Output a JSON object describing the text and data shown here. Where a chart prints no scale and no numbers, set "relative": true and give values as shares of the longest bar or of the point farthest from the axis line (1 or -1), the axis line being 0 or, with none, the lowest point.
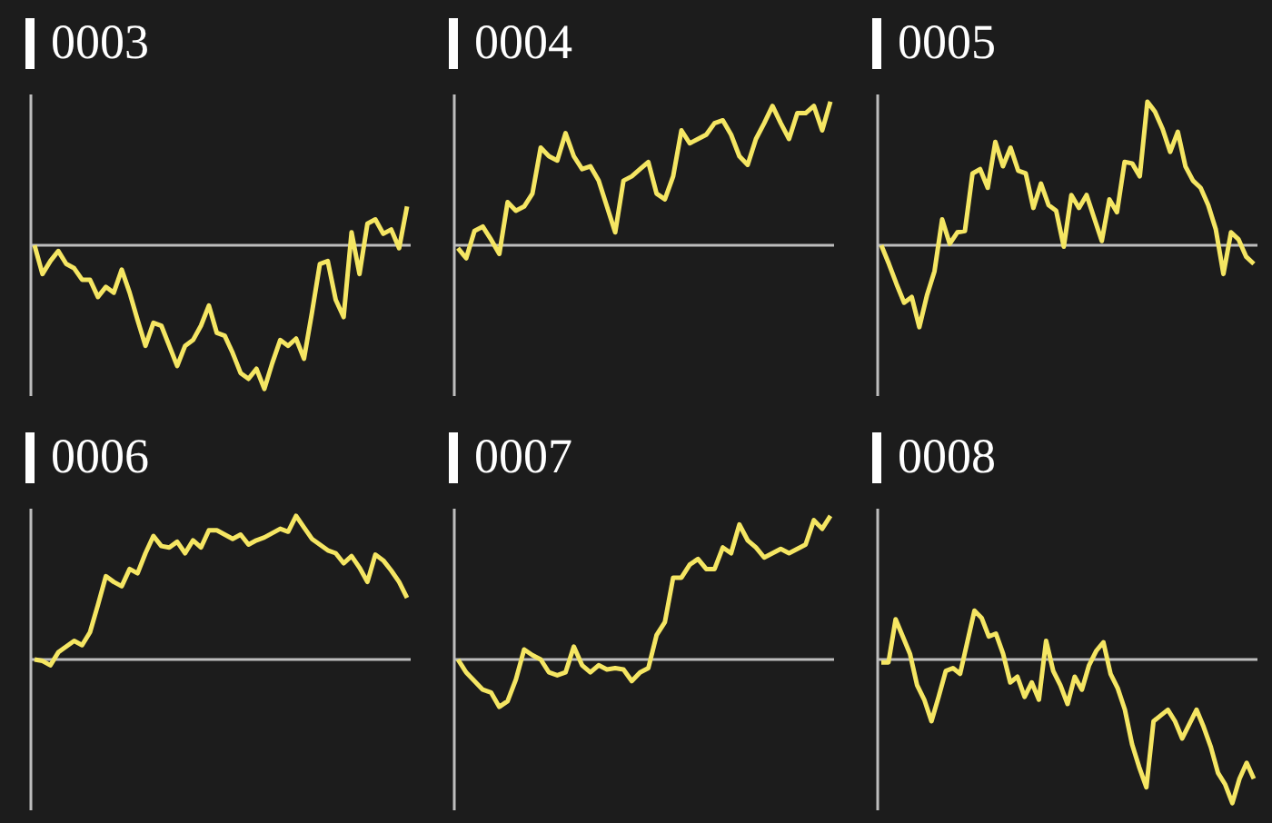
{
  "chart_data": [
    {
      "type": "line",
      "title": "0003",
      "relative": true,
      "categories": [
        null,
        null,
        null,
        null,
        null,
        null,
        null,
        null,
        null,
        null,
        null,
        null,
        null,
        null,
        null,
        null,
        null,
        null,
        null,
        null,
        null,
        null,
        null,
        null,
        null,
        null,
        null,
        null,
        null,
        null,
        null,
        null,
        null,
        null,
        null,
        null,
        null,
        null,
        null,
        null,
        null,
        null,
        null,
        null,
        null,
        null,
        null,
        null
      ],
      "series": [
        {
          "color": "#f5e663",
          "values": [
            0,
            -0.2,
            -0.11,
            -0.04,
            -0.13,
            -0.16,
            -0.24,
            -0.24,
            -0.36,
            -0.29,
            -0.33,
            -0.17,
            -0.33,
            -0.52,
            -0.7,
            -0.54,
            -0.56,
            -0.7,
            -0.84,
            -0.7,
            -0.66,
            -0.56,
            -0.42,
            -0.61,
            -0.63,
            -0.75,
            -0.89,
            -0.93,
            -0.86,
            -1,
            -0.82,
            -0.66,
            -0.7,
            -0.65,
            -0.79,
            -0.47,
            -0.13,
            -0.11,
            -0.38,
            -0.5,
            0.09,
            -0.2,
            0.15,
            0.18,
            0.08,
            0.11,
            -0.02,
            0.27
          ]
        }
      ]
    },
    {
      "type": "line",
      "title": "0004",
      "relative": true,
      "categories": [
        null,
        null,
        null,
        null,
        null,
        null,
        null,
        null,
        null,
        null,
        null,
        null,
        null,
        null,
        null,
        null,
        null,
        null,
        null,
        null,
        null,
        null,
        null,
        null,
        null,
        null,
        null,
        null,
        null,
        null,
        null,
        null,
        null,
        null,
        null,
        null,
        null,
        null,
        null,
        null,
        null,
        null,
        null,
        null,
        null,
        null
      ],
      "series": [
        {
          "color": "#f5e663",
          "values": [
            -0.02,
            -0.09,
            0.1,
            0.13,
            0.04,
            -0.06,
            0.3,
            0.24,
            0.27,
            0.36,
            0.68,
            0.62,
            0.59,
            0.78,
            0.62,
            0.53,
            0.55,
            0.45,
            0.27,
            0.09,
            0.45,
            0.48,
            0.53,
            0.58,
            0.36,
            0.32,
            0.48,
            0.8,
            0.71,
            0.74,
            0.77,
            0.85,
            0.87,
            0.77,
            0.62,
            0.56,
            0.74,
            0.85,
            0.97,
            0.85,
            0.74,
            0.92,
            0.92,
            0.97,
            0.8,
            1
          ]
        }
      ]
    },
    {
      "type": "line",
      "title": "0005",
      "relative": true,
      "categories": [
        null,
        null,
        null,
        null,
        null,
        null,
        null,
        null,
        null,
        null,
        null,
        null,
        null,
        null,
        null,
        null,
        null,
        null,
        null,
        null,
        null,
        null,
        null,
        null,
        null,
        null,
        null,
        null,
        null,
        null,
        null,
        null,
        null,
        null,
        null,
        null,
        null,
        null,
        null,
        null,
        null,
        null,
        null,
        null,
        null,
        null,
        null,
        null,
        null,
        null
      ],
      "series": [
        {
          "color": "#f5e663",
          "values": [
            0,
            -0.13,
            -0.27,
            -0.4,
            -0.36,
            -0.57,
            -0.35,
            -0.18,
            0.18,
            0.01,
            0.09,
            0.1,
            0.5,
            0.53,
            0.4,
            0.72,
            0.55,
            0.68,
            0.52,
            0.5,
            0.26,
            0.43,
            0.28,
            0.24,
            -0.01,
            0.35,
            0.26,
            0.35,
            0.19,
            0.03,
            0.32,
            0.23,
            0.58,
            0.57,
            0.48,
            1,
            0.93,
            0.81,
            0.65,
            0.79,
            0.55,
            0.45,
            0.4,
            0.28,
            0.11,
            -0.2,
            0.09,
            0.04,
            -0.08,
            -0.13
          ]
        }
      ]
    },
    {
      "type": "line",
      "title": "0006",
      "relative": true,
      "categories": [
        null,
        null,
        null,
        null,
        null,
        null,
        null,
        null,
        null,
        null,
        null,
        null,
        null,
        null,
        null,
        null,
        null,
        null,
        null,
        null,
        null,
        null,
        null,
        null,
        null,
        null,
        null,
        null,
        null,
        null,
        null,
        null,
        null,
        null,
        null,
        null,
        null,
        null,
        null,
        null,
        null,
        null,
        null,
        null,
        null,
        null,
        null,
        null
      ],
      "series": [
        {
          "color": "#f5e663",
          "values": [
            0,
            -0.01,
            -0.04,
            0.05,
            0.09,
            0.13,
            0.1,
            0.19,
            0.38,
            0.58,
            0.54,
            0.51,
            0.63,
            0.6,
            0.74,
            0.86,
            0.79,
            0.78,
            0.82,
            0.74,
            0.83,
            0.78,
            0.9,
            0.9,
            0.87,
            0.84,
            0.87,
            0.8,
            0.83,
            0.85,
            0.88,
            0.91,
            0.89,
            1,
            0.92,
            0.84,
            0.8,
            0.76,
            0.74,
            0.67,
            0.72,
            0.64,
            0.54,
            0.73,
            0.69,
            0.62,
            0.54,
            0.43
          ]
        }
      ]
    },
    {
      "type": "line",
      "title": "0007",
      "relative": true,
      "categories": [
        null,
        null,
        null,
        null,
        null,
        null,
        null,
        null,
        null,
        null,
        null,
        null,
        null,
        null,
        null,
        null,
        null,
        null,
        null,
        null,
        null,
        null,
        null,
        null,
        null,
        null,
        null,
        null,
        null,
        null,
        null,
        null,
        null,
        null,
        null,
        null,
        null,
        null,
        null,
        null,
        null,
        null,
        null,
        null,
        null,
        null
      ],
      "series": [
        {
          "color": "#f5e663",
          "values": [
            0,
            -0.09,
            -0.15,
            -0.21,
            -0.23,
            -0.33,
            -0.29,
            -0.14,
            0.07,
            0.03,
            0,
            -0.09,
            -0.11,
            -0.09,
            0.09,
            -0.04,
            -0.09,
            -0.04,
            -0.07,
            -0.06,
            -0.07,
            -0.15,
            -0.09,
            -0.06,
            0.17,
            0.26,
            0.57,
            0.57,
            0.66,
            0.7,
            0.63,
            0.63,
            0.78,
            0.74,
            0.94,
            0.83,
            0.78,
            0.71,
            0.74,
            0.77,
            0.74,
            0.77,
            0.8,
            0.97,
            0.91,
            1
          ]
        }
      ]
    },
    {
      "type": "line",
      "title": "0008",
      "relative": true,
      "categories": [
        null,
        null,
        null,
        null,
        null,
        null,
        null,
        null,
        null,
        null,
        null,
        null,
        null,
        null,
        null,
        null,
        null,
        null,
        null,
        null,
        null,
        null,
        null,
        null,
        null,
        null,
        null,
        null,
        null,
        null,
        null,
        null,
        null,
        null,
        null,
        null,
        null,
        null,
        null,
        null,
        null,
        null,
        null,
        null,
        null,
        null,
        null,
        null,
        null,
        null,
        null,
        null,
        null
      ],
      "series": [
        {
          "color": "#f5e663",
          "values": [
            -0.02,
            -0.02,
            0.28,
            0.16,
            0.04,
            -0.18,
            -0.28,
            -0.43,
            -0.26,
            -0.08,
            -0.06,
            -0.1,
            0.12,
            0.34,
            0.29,
            0.16,
            0.18,
            0.04,
            -0.16,
            -0.12,
            -0.26,
            -0.16,
            -0.28,
            0.13,
            -0.08,
            -0.18,
            -0.31,
            -0.12,
            -0.21,
            -0.04,
            0.06,
            0.12,
            -0.1,
            -0.2,
            -0.35,
            -0.59,
            -0.75,
            -0.89,
            -0.43,
            -0.39,
            -0.35,
            -0.43,
            -0.55,
            -0.45,
            -0.35,
            -0.47,
            -0.61,
            -0.79,
            -0.87,
            -1,
            -0.83,
            -0.72,
            -0.83
          ]
        }
      ]
    }
  ]
}
